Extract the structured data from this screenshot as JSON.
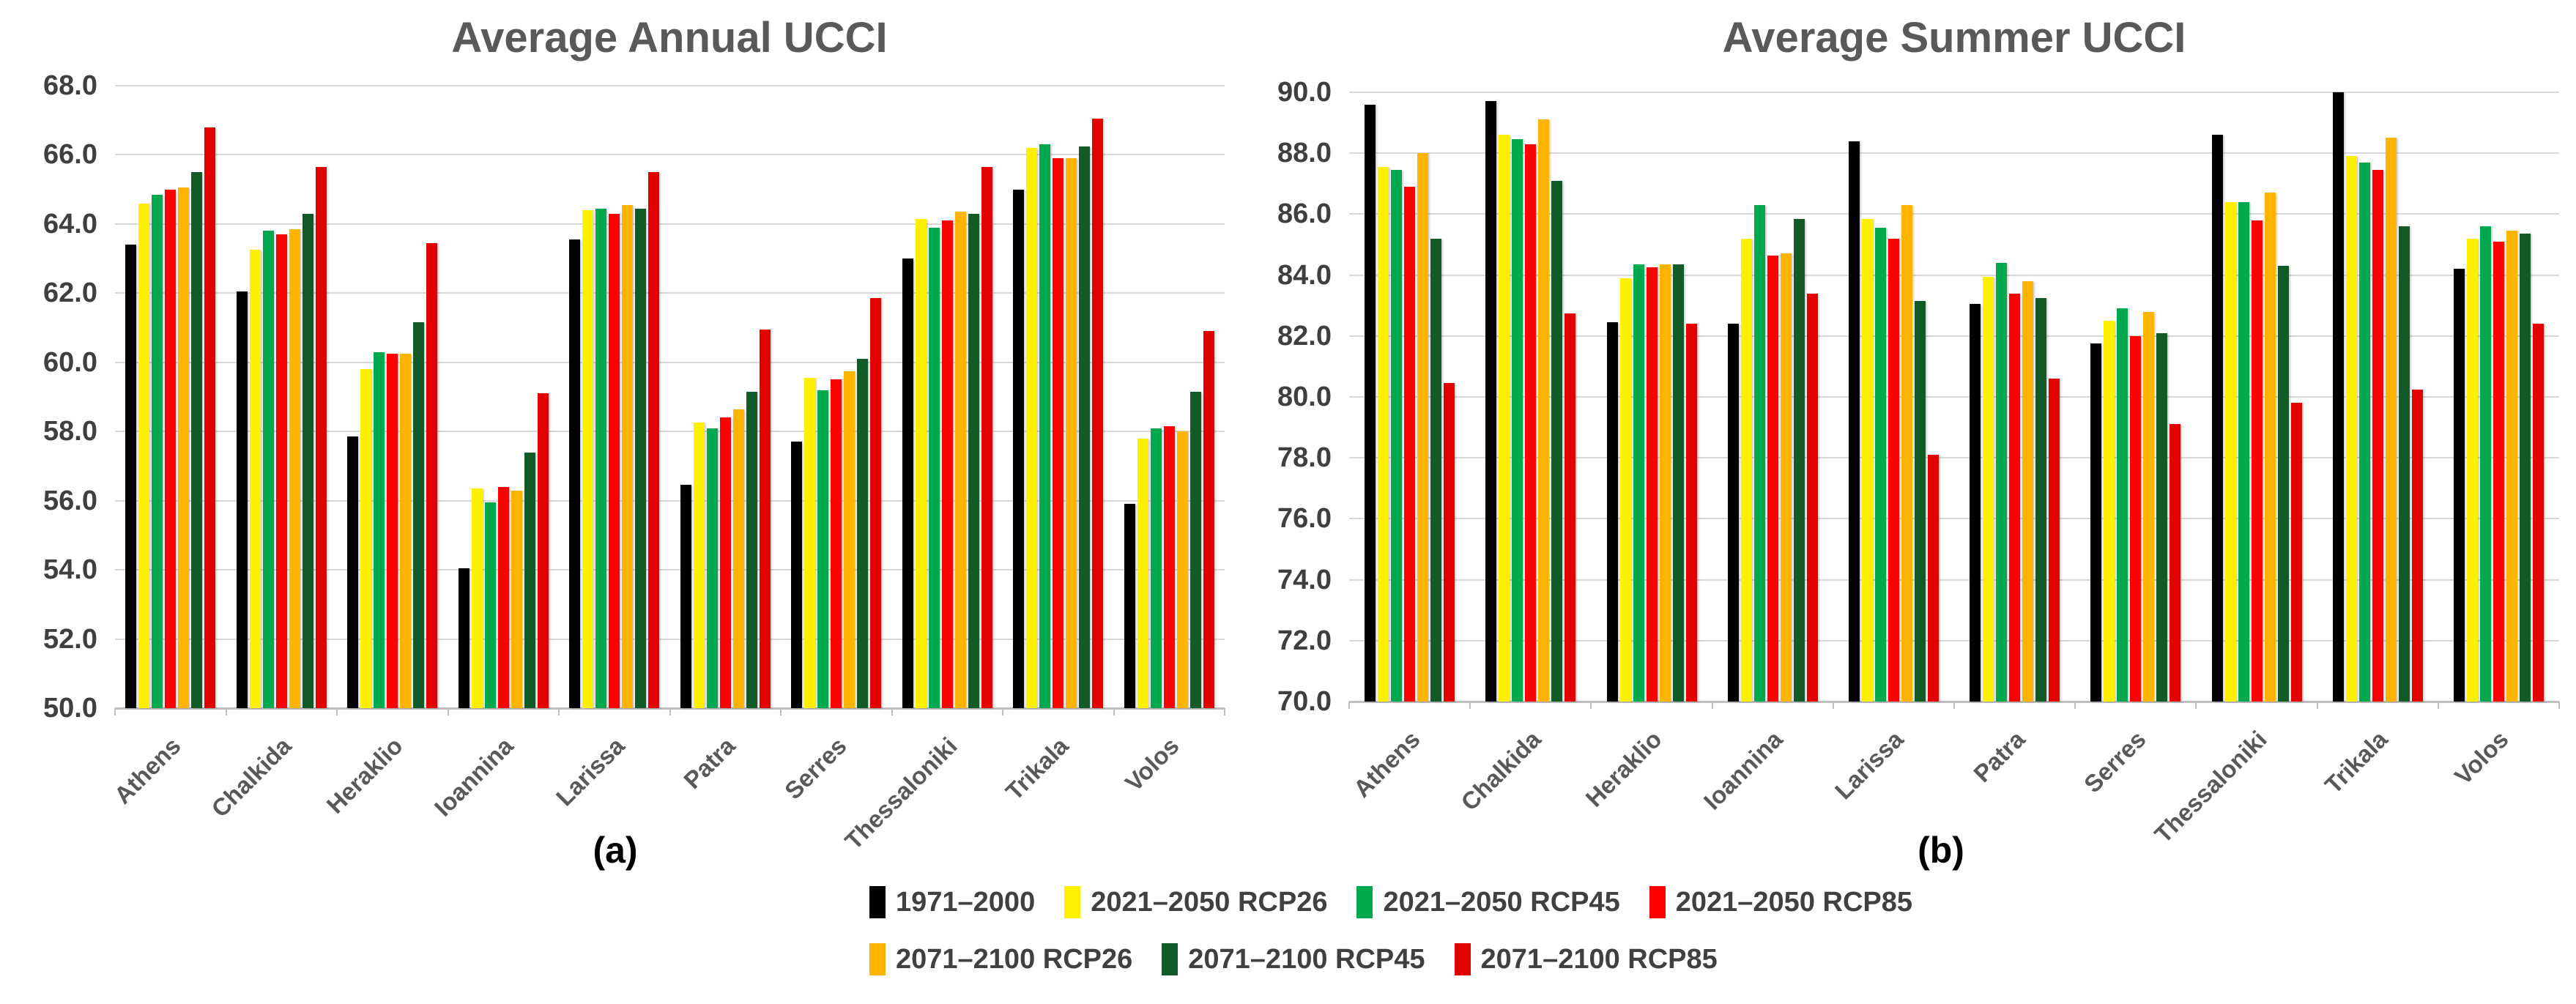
{
  "figure": {
    "background": "#FFFFFF",
    "gridline_color": "#D8D8D8",
    "axis_line_color": "#BFBFBF",
    "title_color": "#595959",
    "axis_text_color": "#3F3F3F"
  },
  "legend": {
    "rows": [
      [
        0,
        1,
        2,
        3
      ],
      [
        4,
        5,
        6
      ]
    ]
  },
  "chart_data": [
    {
      "type": "bar",
      "title": "Average Annual UCCI",
      "panel_label": "(a)",
      "xlabel": "",
      "ylabel": "",
      "ylim": [
        50.0,
        68.0
      ],
      "ytick_step": 2.0,
      "ytick_format": "one-decimal",
      "grid": true,
      "legend_position": "bottom",
      "categories": [
        "Athens",
        "Chalkida",
        "Heraklio",
        "Ioannina",
        "Larissa",
        "Patra",
        "Serres",
        "Thessaloniki",
        "Trikala",
        "Volos"
      ],
      "series": [
        {
          "name": "1971–2000",
          "color": "#000000",
          "values": [
            63.4,
            62.05,
            57.85,
            54.05,
            63.55,
            56.45,
            57.7,
            63.0,
            65.0,
            55.9
          ]
        },
        {
          "name": "2021–2050 RCP26",
          "color": "#FFF000",
          "values": [
            64.6,
            63.25,
            59.8,
            56.35,
            64.4,
            58.25,
            59.55,
            64.15,
            66.2,
            57.8
          ]
        },
        {
          "name": "2021–2050 RCP45",
          "color": "#00A94E",
          "values": [
            64.85,
            63.8,
            60.3,
            55.95,
            64.45,
            58.1,
            59.2,
            63.9,
            66.3,
            58.1
          ]
        },
        {
          "name": "2021–2050 RCP85",
          "color": "#FE0000",
          "values": [
            65.0,
            63.7,
            60.25,
            56.4,
            64.3,
            58.4,
            59.5,
            64.1,
            65.9,
            58.15
          ]
        },
        {
          "name": "2071–2100 RCP26",
          "color": "#FFB400",
          "values": [
            65.05,
            63.85,
            60.25,
            56.3,
            64.55,
            58.65,
            59.75,
            64.35,
            65.9,
            58.0
          ]
        },
        {
          "name": "2071–2100 RCP45",
          "color": "#125A28",
          "values": [
            65.5,
            64.3,
            61.15,
            57.4,
            64.45,
            59.15,
            60.1,
            64.3,
            66.25,
            59.15
          ]
        },
        {
          "name": "2071–2100 RCP85",
          "color": "#E30000",
          "values": [
            66.8,
            65.65,
            63.45,
            59.1,
            65.5,
            60.95,
            61.85,
            65.65,
            67.05,
            60.9
          ]
        }
      ]
    },
    {
      "type": "bar",
      "title": "Average Summer UCCI",
      "panel_label": "(b)",
      "xlabel": "",
      "ylabel": "",
      "ylim": [
        70.0,
        90.0
      ],
      "ytick_step": 2.0,
      "ytick_format": "one-decimal",
      "grid": true,
      "legend_position": "bottom",
      "categories": [
        "Athens",
        "Chalkida",
        "Heraklio",
        "Ioannina",
        "Larissa",
        "Patra",
        "Serres",
        "Thessaloniki",
        "Trikala",
        "Volos"
      ],
      "series": [
        {
          "name": "1971–2000",
          "color": "#000000",
          "values": [
            89.6,
            89.7,
            82.45,
            82.4,
            88.4,
            83.05,
            81.75,
            88.6,
            90.0,
            84.2
          ]
        },
        {
          "name": "2021–2050 RCP26",
          "color": "#FFF000",
          "values": [
            87.55,
            88.6,
            83.9,
            85.2,
            85.85,
            83.95,
            82.5,
            86.4,
            87.9,
            85.2
          ]
        },
        {
          "name": "2021–2050 RCP45",
          "color": "#00A94E",
          "values": [
            87.45,
            88.45,
            84.35,
            86.3,
            85.55,
            84.4,
            82.9,
            86.4,
            87.7,
            85.6
          ]
        },
        {
          "name": "2021–2050 RCP85",
          "color": "#FE0000",
          "values": [
            86.9,
            88.3,
            84.25,
            84.65,
            85.2,
            83.4,
            82.0,
            85.8,
            87.45,
            85.1
          ]
        },
        {
          "name": "2071–2100 RCP26",
          "color": "#FFB400",
          "values": [
            88.0,
            89.1,
            84.35,
            84.7,
            86.3,
            83.8,
            82.8,
            86.7,
            88.5,
            85.45
          ]
        },
        {
          "name": "2071–2100 RCP45",
          "color": "#125A28",
          "values": [
            85.2,
            87.1,
            84.35,
            85.85,
            83.15,
            83.25,
            82.1,
            84.3,
            85.6,
            85.35
          ]
        },
        {
          "name": "2071–2100 RCP85",
          "color": "#E30000",
          "values": [
            80.45,
            82.75,
            82.4,
            83.4,
            78.1,
            80.6,
            79.1,
            79.8,
            80.25,
            82.4
          ]
        }
      ]
    }
  ]
}
